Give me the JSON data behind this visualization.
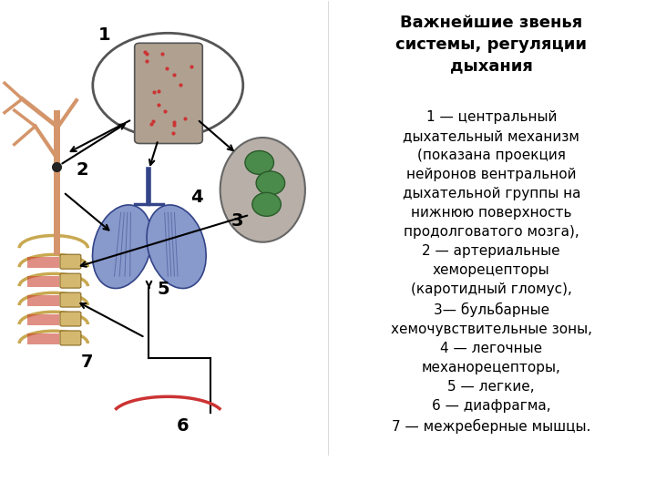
{
  "title": "Важнейшие звенья\nсистемы, регуляции\nдыхания",
  "title_fontsize": 13,
  "body_text": "1 — центральный\nдыхательный механизм\n(показана проекция\nнейронов вентральной\nдыхательной группы на\nнижнюю поверхность\nпродолговатого мозга),\n2 — артериальные\nхеморецепторы\n(каротидный гломус),\n3— бульбарные\nхемочувствительные зоны,\n4 — легочные\nмеханорецепторы,\n5 — легкие,\n6 — диафрагма,\n7 — межреберные мышцы.",
  "body_fontsize": 11,
  "bg_color": "#ffffff",
  "text_color": "#000000",
  "fig_width": 7.2,
  "fig_height": 5.4,
  "dpi": 100,
  "vessel_color": "#d4956a",
  "rib_color": "#d4b870",
  "lung_color": "#8899cc",
  "lung_edge": "#334488",
  "brain_fill": "#b0a090",
  "bs_fill": "#b8b0a8",
  "green_blob": "#4a8a4a",
  "green_blob_edge": "#2a5a2a",
  "arrow_color": "#000000",
  "diaphragm_color": "#cc3333",
  "muscle_color": "#cc4433"
}
